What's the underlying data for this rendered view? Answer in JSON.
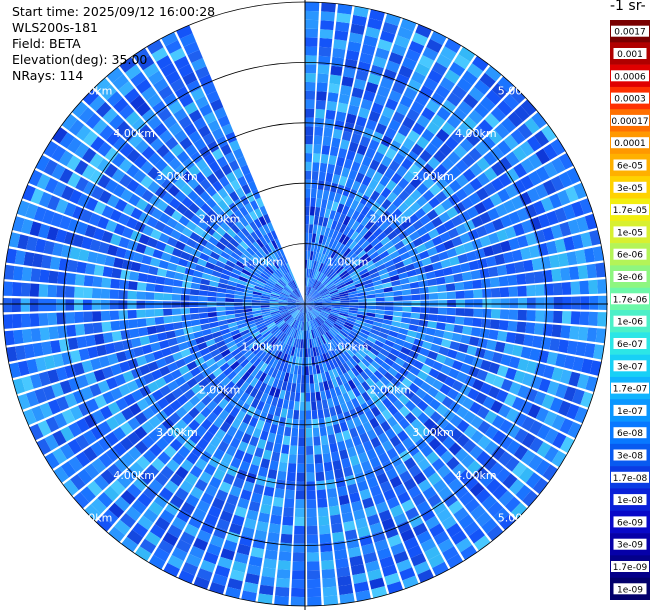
{
  "meta": {
    "start_time": "Start time: 2025/09/12 16:00:28",
    "instrument": "WLS200s-181",
    "field": "Field: BETA",
    "elevation": "Elevation(deg): 35.00",
    "nrays": "NRays: 114"
  },
  "colorbar": {
    "title_fragment": "-1 sr-",
    "ticks": [
      "0.0017",
      "0.001",
      "0.0006",
      "0.0003",
      "0.00017",
      "0.0001",
      "6e-05",
      "3e-05",
      "1.7e-05",
      "1e-05",
      "6e-06",
      "3e-06",
      "1.7e-06",
      "1e-06",
      "6e-07",
      "3e-07",
      "1.7e-07",
      "1e-07",
      "6e-08",
      "3e-08",
      "1.7e-08",
      "1e-08",
      "6e-09",
      "3e-09",
      "1.7e-09",
      "1e-09"
    ],
    "colors": [
      "#7a0000",
      "#b00000",
      "#e00000",
      "#ff3000",
      "#ff7000",
      "#ff9800",
      "#ffb000",
      "#ffd200",
      "#f2ee10",
      "#d8f030",
      "#b4f458",
      "#8ef680",
      "#6cf8a8",
      "#4cf0c8",
      "#2ce6e6",
      "#18d0f6",
      "#10b4ff",
      "#0a96ff",
      "#0878ff",
      "#085af0",
      "#0a3ce4",
      "#0a20d8",
      "#0808c8",
      "#0600a8",
      "#04008a",
      "#02006c"
    ]
  },
  "range_labels": [
    "1.00km",
    "2.00km",
    "3.00km",
    "4.00km",
    "5.00km"
  ],
  "chart_data": {
    "type": "heatmap",
    "projection": "polar-ppi",
    "field": "BETA",
    "elevation_deg": 35.0,
    "n_rays": 114,
    "range_rings_km": [
      1,
      2,
      3,
      4,
      5
    ],
    "max_range_km": 5.0,
    "blank_sector_deg": [
      -23,
      0
    ],
    "scale": "log",
    "value_range": [
      1e-09,
      0.0017
    ],
    "dominant_values": "mostly 1e-08 to 1e-07 (blue to cyan)"
  }
}
